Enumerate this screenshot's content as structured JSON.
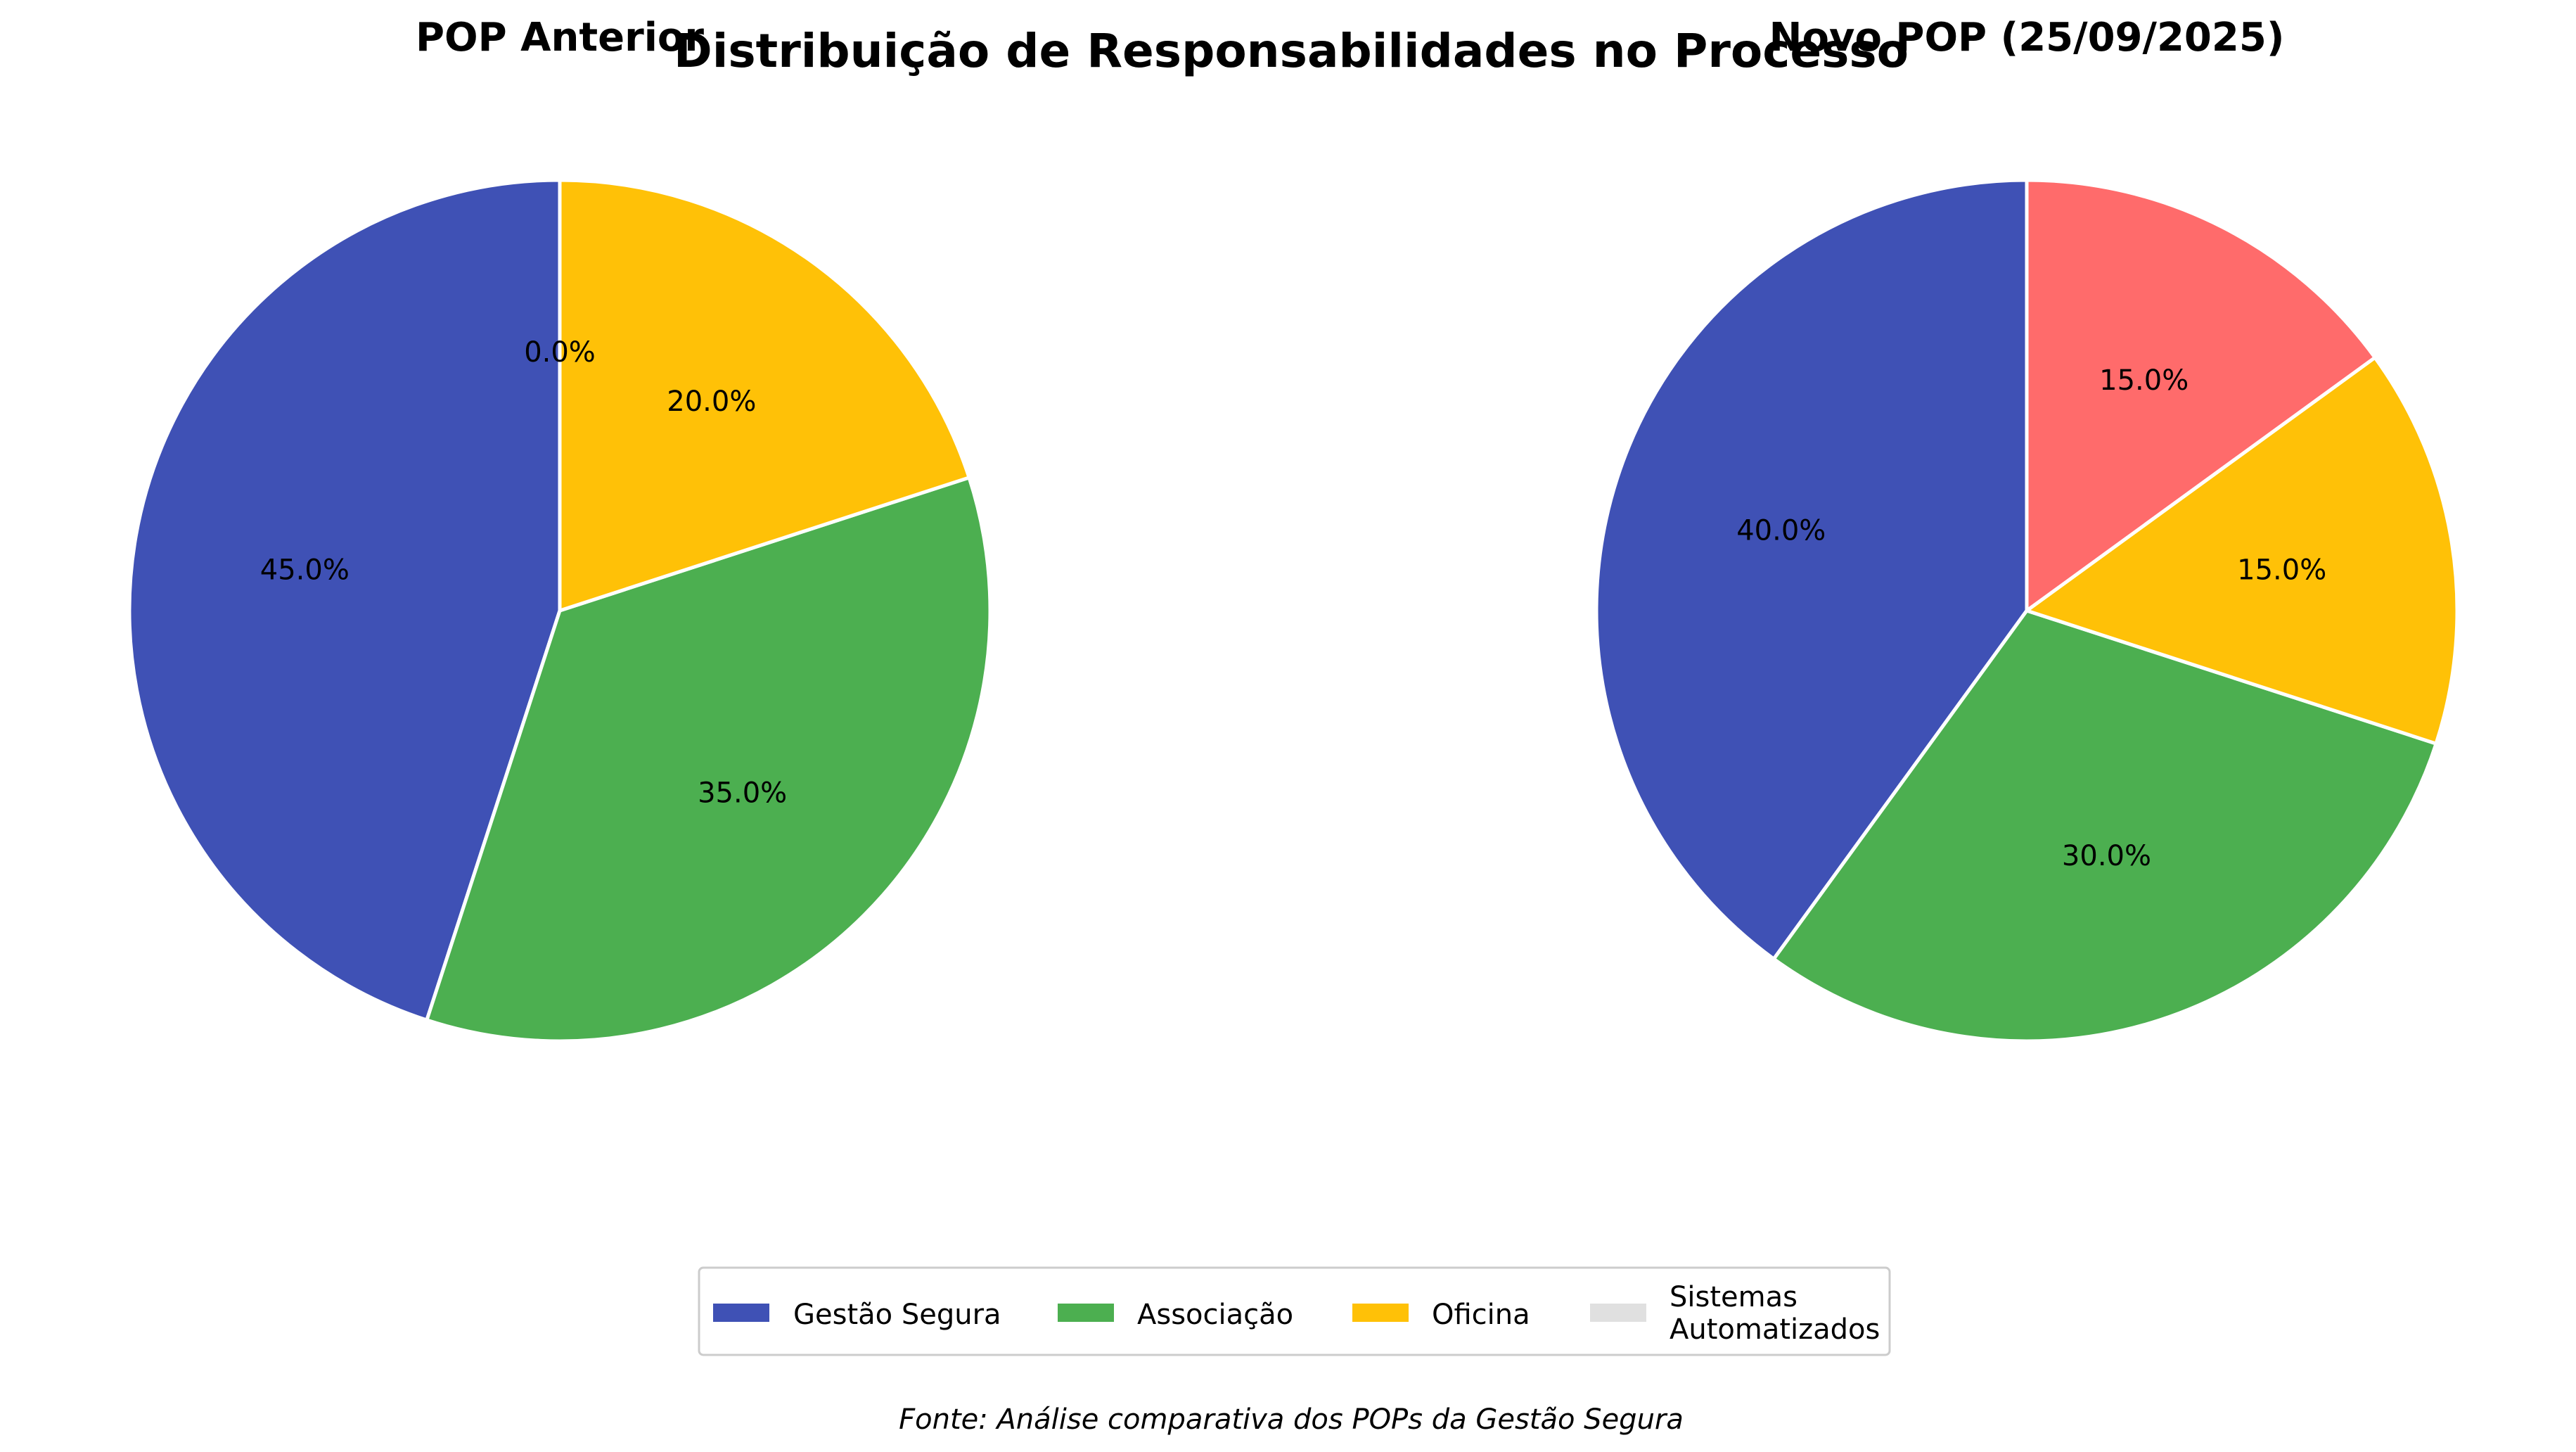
{
  "chart_data": {
    "type": "pie",
    "title": "Distribuição de Responsabilidades no Processo",
    "source": "Fonte: Análise comparativa dos POPs da Gestão Segura",
    "categories": [
      "Gestão Segura",
      "Associação",
      "Oficina",
      "Sistemas Automatizados"
    ],
    "legend": {
      "placement": "bottom-center",
      "entries": [
        {
          "label": "Gestão Segura"
        },
        {
          "label": "Associação"
        },
        {
          "label": "Oficina"
        },
        {
          "label_lines": [
            "Sistemas",
            "Automatizados"
          ]
        }
      ]
    },
    "colors": {
      "Gestão Segura": "#3F51B5",
      "Associação": "#4CAF50",
      "Oficina": "#FFC107",
      "Sistemas Automatizados": "#FF6B6B",
      "legend_sistemas_swatch": "#E0E0E0"
    },
    "pies": [
      {
        "title": "POP Anterior",
        "start_angle_deg": 90,
        "direction": "counterclockwise",
        "slices": [
          {
            "category": "Gestão Segura",
            "value": 45.0,
            "label": "45.0%"
          },
          {
            "category": "Associação",
            "value": 35.0,
            "label": "35.0%"
          },
          {
            "category": "Oficina",
            "value": 20.0,
            "label": "20.0%"
          },
          {
            "category": "Sistemas Automatizados",
            "value": 0.0,
            "label": "0.0%"
          }
        ]
      },
      {
        "title": "Novo POP (25/09/2025)",
        "start_angle_deg": 90,
        "direction": "counterclockwise",
        "slices": [
          {
            "category": "Gestão Segura",
            "value": 40.0,
            "label": "40.0%"
          },
          {
            "category": "Associação",
            "value": 30.0,
            "label": "30.0%"
          },
          {
            "category": "Oficina",
            "value": 15.0,
            "label": "15.0%"
          },
          {
            "category": "Sistemas Automatizados",
            "value": 15.0,
            "label": "15.0%"
          }
        ]
      }
    ]
  }
}
